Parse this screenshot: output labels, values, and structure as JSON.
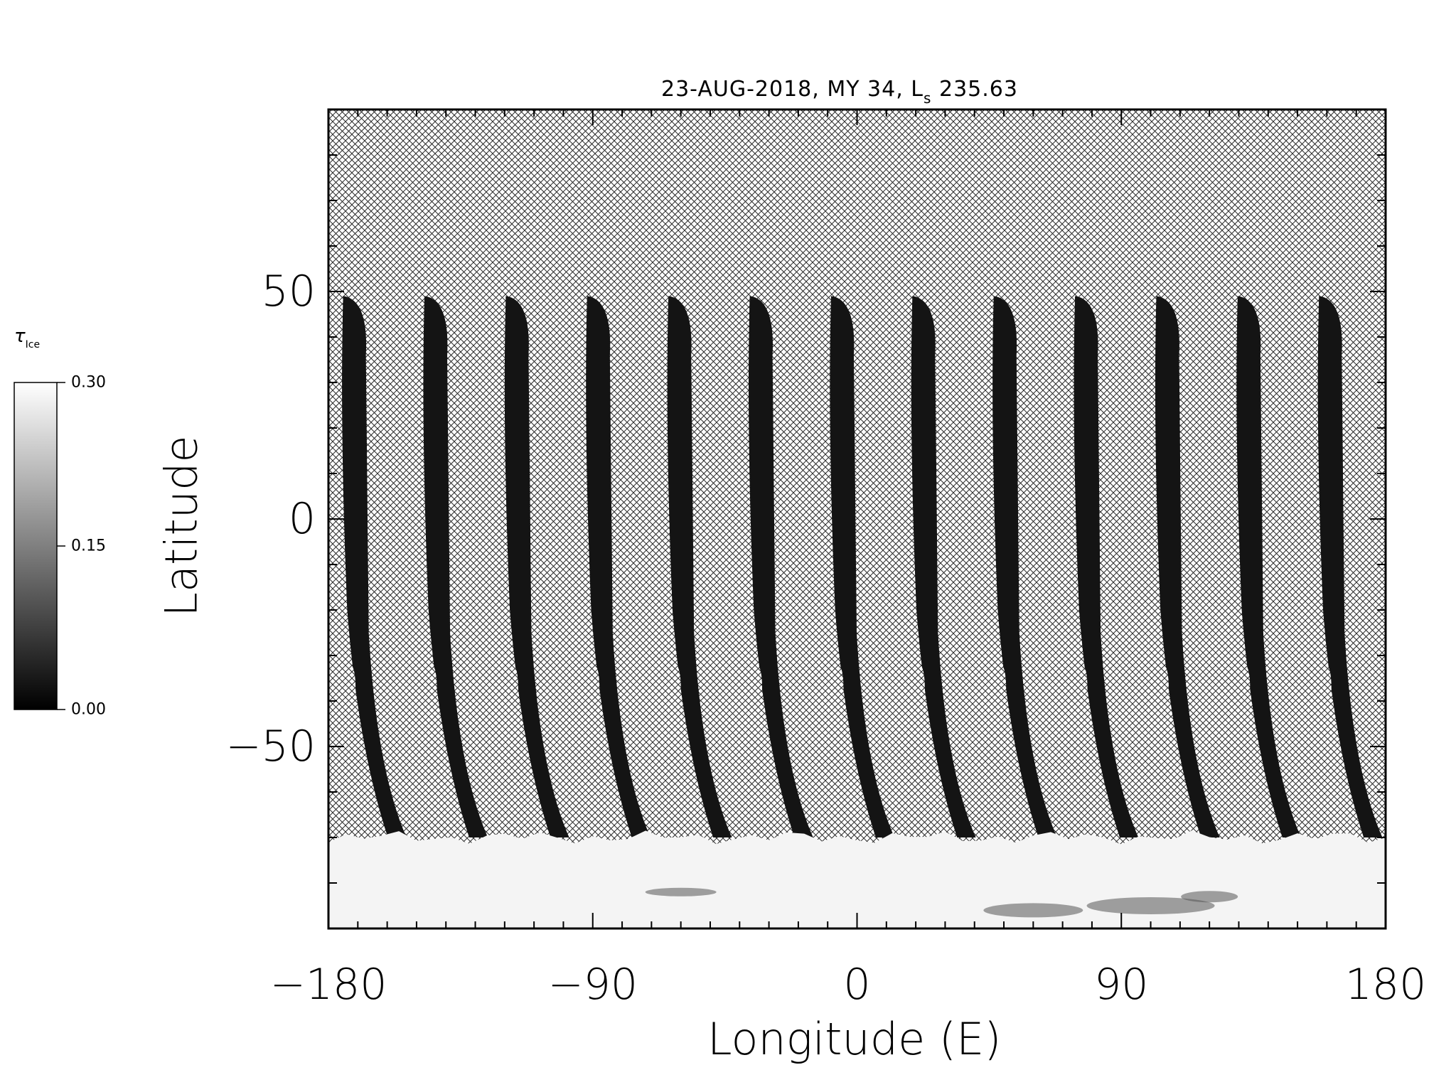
{
  "chart_data": {
    "type": "heatmap",
    "title_main": "23-AUG-2018, MY 34,  L",
    "title_sub": "s",
    "title_tail": " 235.63",
    "xlabel": "Longitude (E)",
    "ylabel": "Latitude",
    "xlim": [
      -180,
      180
    ],
    "ylim": [
      -90,
      90
    ],
    "x_ticks": [
      "−180",
      "−90",
      "0",
      "90",
      "180"
    ],
    "y_ticks": [
      "50",
      "0",
      "−50"
    ],
    "x_tick_values": [
      -180,
      -90,
      0,
      90,
      180
    ],
    "y_tick_values": [
      50,
      0,
      -50
    ],
    "colorbar": {
      "label_main": "τ",
      "label_sub": "Ice",
      "min": 0.0,
      "max": 0.3,
      "ticks": [
        "0.30",
        "0.15",
        "0.00"
      ],
      "tick_values": [
        0.3,
        0.15,
        0.0
      ],
      "colormap": "grayscale"
    },
    "no_data_fill": "crosshatch",
    "swath_count": 13,
    "swath_lat_top": 49,
    "swath_lat_bottom": -70,
    "polar_hood_lat": -70,
    "colors": {
      "low": "#141414",
      "high": "#f4f4f4",
      "background": "#ffffff"
    }
  }
}
